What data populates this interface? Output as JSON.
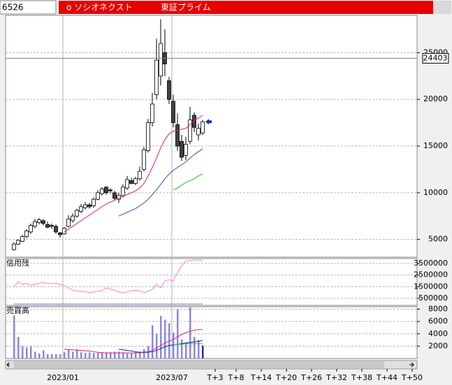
{
  "header": {
    "code": "6526",
    "name": "o ソシオネクスト",
    "market": "東証プライム"
  },
  "chart_data": [
    {
      "type": "candlestick",
      "categories": [
        null,
        null,
        null,
        null,
        null,
        null,
        null,
        null,
        null,
        null,
        null,
        null,
        "2023/01",
        null,
        null,
        null,
        null,
        null,
        null,
        null,
        null,
        null,
        null,
        null,
        null,
        null,
        null,
        null,
        null,
        null,
        null,
        null,
        null,
        null,
        null,
        null,
        null,
        null,
        "2023/07",
        null,
        null,
        null,
        null,
        null,
        null,
        null
      ],
      "forecast_ticks": [
        {
          "value": 3,
          "label": "T+3"
        },
        {
          "value": 8,
          "label": "T+8"
        },
        {
          "value": 14,
          "label": "T+14"
        },
        {
          "value": 20,
          "label": "T+20"
        },
        {
          "value": 26,
          "label": "T+26"
        },
        {
          "value": 32,
          "label": "T+32"
        },
        {
          "value": 38,
          "label": "T+38"
        },
        {
          "value": 44,
          "label": "T+44"
        },
        {
          "value": 50,
          "label": "T+50"
        }
      ],
      "open": [
        3900,
        4500,
        4800,
        5300,
        5800,
        6400,
        6800,
        7000,
        6600,
        6500,
        6400,
        5700,
        5600,
        6400,
        7000,
        7500,
        8000,
        8400,
        8700,
        8600,
        9300,
        9900,
        10600,
        10300,
        10000,
        9300,
        9700,
        10500,
        11300,
        11000,
        11500,
        12500,
        14500,
        17500,
        20500,
        22500,
        25000,
        22000,
        19800,
        17300,
        15500,
        14000,
        15500,
        18300,
        16200,
        16400
      ],
      "high": [
        4700,
        5000,
        5500,
        6100,
        6700,
        7200,
        7300,
        7200,
        6900,
        6700,
        6600,
        5800,
        6300,
        7600,
        7800,
        8300,
        8800,
        9000,
        8900,
        9500,
        10300,
        10600,
        10700,
        10500,
        10200,
        10000,
        10900,
        11800,
        11600,
        11700,
        12800,
        14900,
        17900,
        20700,
        26500,
        28600,
        27500,
        22400,
        20500,
        18500,
        16200,
        16000,
        19200,
        18600,
        17400,
        17800
      ],
      "low": [
        3800,
        4400,
        4700,
        5100,
        5600,
        6200,
        6600,
        6500,
        6200,
        6100,
        5600,
        5200,
        5500,
        6300,
        6800,
        7300,
        7800,
        8200,
        8300,
        8400,
        9200,
        9700,
        9800,
        9900,
        9200,
        8900,
        9500,
        10300,
        10900,
        10800,
        11300,
        12300,
        14300,
        17100,
        20000,
        21500,
        22500,
        19500,
        17000,
        14500,
        13400,
        13500,
        15200,
        16500,
        15600,
        16200
      ],
      "close": [
        4500,
        4900,
        5300,
        5900,
        6500,
        6900,
        7100,
        6700,
        6300,
        6400,
        5800,
        5500,
        6200,
        7200,
        7500,
        8100,
        8500,
        8700,
        8500,
        9300,
        10000,
        10400,
        10000,
        10200,
        9400,
        9700,
        10600,
        11400,
        11000,
        11500,
        12300,
        14600,
        17500,
        19500,
        24200,
        26000,
        23800,
        20000,
        17500,
        15000,
        13800,
        15200,
        17800,
        17000,
        16900,
        17600
      ],
      "moving_averages": [
        {
          "color": "#e0207a",
          "values": [
            null,
            null,
            null,
            null,
            null,
            null,
            null,
            null,
            null,
            null,
            null,
            null,
            5800,
            6100,
            6400,
            6700,
            7000,
            7300,
            7600,
            7900,
            8200,
            8500,
            8800,
            9000,
            9200,
            9400,
            9600,
            9800,
            10000,
            10200,
            10500,
            11000,
            11800,
            12700,
            13700,
            14800,
            15700,
            16300,
            16600,
            16700,
            16800,
            16900,
            17300,
            17700,
            18000,
            18300
          ]
        },
        {
          "color": "#4848c0",
          "values": [
            null,
            null,
            null,
            null,
            null,
            null,
            null,
            null,
            null,
            null,
            null,
            null,
            null,
            null,
            null,
            null,
            null,
            null,
            null,
            null,
            null,
            null,
            null,
            null,
            null,
            7500,
            7700,
            7900,
            8100,
            8300,
            8600,
            8900,
            9300,
            9800,
            10300,
            10900,
            11500,
            12000,
            12400,
            12700,
            13000,
            13300,
            13700,
            14100,
            14400,
            14700
          ]
        },
        {
          "color": "#20c020",
          "values": [
            null,
            null,
            null,
            null,
            null,
            null,
            null,
            null,
            null,
            null,
            null,
            null,
            null,
            null,
            null,
            null,
            null,
            null,
            null,
            null,
            null,
            null,
            null,
            null,
            null,
            null,
            null,
            null,
            null,
            null,
            null,
            null,
            null,
            null,
            null,
            null,
            null,
            null,
            10300,
            10500,
            10800,
            11100,
            11300,
            11500,
            11800,
            12000
          ]
        }
      ],
      "price_line": 24403,
      "ylim": [
        3100,
        29000
      ],
      "yticks": [
        5000,
        10000,
        15000,
        20000,
        25000
      ],
      "grid": true
    },
    {
      "type": "line",
      "title": "信用残",
      "series": [
        {
          "color": "#ff80c8",
          "values": [
            1500000,
            1900000,
            1700000,
            1800000,
            1600000,
            1700000,
            1800000,
            1850000,
            1800000,
            1750000,
            1800000,
            1700000,
            1600000,
            1400000,
            1200000,
            1150000,
            1100000,
            1100000,
            1000000,
            1050000,
            1100000,
            1150000,
            1400000,
            1300000,
            1200000,
            1050000,
            1000000,
            1050000,
            1150000,
            1200000,
            1150000,
            1000000,
            1100000,
            1300000,
            1700000,
            1400000,
            2000000,
            2100000,
            2000000,
            2700000,
            3300000,
            3700000,
            3750000,
            3800000,
            3800000,
            3750000
          ]
        },
        {
          "color": "#8080d0",
          "values": [
            20000,
            20000,
            20000,
            20000,
            20000,
            20000,
            20000,
            20000,
            20000,
            20000,
            20000,
            20000,
            20000,
            20000,
            20000,
            20000,
            20000,
            20000,
            20000,
            20000,
            20000,
            20000,
            20000,
            20000,
            20000,
            20000,
            20000,
            20000,
            20000,
            20000,
            20000,
            20000,
            20000,
            20000,
            20000,
            20000,
            20000,
            20000,
            20000,
            20000,
            20000,
            20000,
            20000,
            20000,
            20000,
            20000
          ]
        }
      ],
      "ylim": [
        -100000,
        3920000
      ],
      "yticks": [
        500000,
        1500000,
        2500000,
        3500000
      ],
      "grid": true
    },
    {
      "type": "bar",
      "title": "売買高",
      "color": "#8888e0",
      "last_color": "#2030c0",
      "values": [
        7000,
        3500,
        2000,
        1800,
        2000,
        1100,
        800,
        1300,
        700,
        700,
        700,
        700,
        1000,
        1500,
        1100,
        1500,
        1000,
        900,
        1000,
        900,
        900,
        1000,
        1000,
        1000,
        1100,
        1100,
        1000,
        900,
        900,
        1100,
        1100,
        1500,
        2000,
        5400,
        4000,
        6900,
        6300,
        5700,
        4200,
        8000,
        3100,
        2600,
        8300,
        3500,
        3000,
        2100
      ],
      "moving_averages": [
        {
          "color": "#e0207a",
          "values": [
            null,
            null,
            null,
            null,
            null,
            null,
            null,
            null,
            null,
            null,
            null,
            null,
            1500,
            1450,
            1400,
            1350,
            1300,
            1250,
            1200,
            1100,
            1000,
            950,
            900,
            900,
            900,
            900,
            900,
            900,
            900,
            900,
            950,
            1000,
            1100,
            1300,
            1700,
            2100,
            2500,
            2800,
            3100,
            3500,
            3900,
            4200,
            4400,
            4600,
            4700,
            4700
          ]
        },
        {
          "color": "#2020a0",
          "values": [
            null,
            null,
            null,
            null,
            null,
            null,
            null,
            null,
            null,
            null,
            null,
            null,
            null,
            null,
            null,
            null,
            null,
            null,
            null,
            null,
            null,
            null,
            null,
            null,
            null,
            1500,
            1400,
            1300,
            1200,
            1100,
            1000,
            1000,
            1000,
            1100,
            1300,
            1600,
            1900,
            2100,
            2200,
            2300,
            2400,
            2500,
            2600,
            2700,
            2800,
            2900
          ]
        },
        {
          "color": "#20c020",
          "values": [
            null,
            null,
            null,
            null,
            null,
            null,
            null,
            null,
            null,
            null,
            null,
            null,
            null,
            null,
            null,
            null,
            null,
            null,
            null,
            null,
            null,
            null,
            null,
            null,
            null,
            null,
            null,
            null,
            null,
            null,
            null,
            null,
            null,
            null,
            null,
            null,
            null,
            null,
            2200,
            2300,
            2300,
            2400,
            2400,
            2400,
            2400,
            2400
          ]
        }
      ],
      "ylim": [
        0,
        8400
      ],
      "yticks": [
        2000,
        4000,
        6000,
        8000
      ],
      "grid": true
    }
  ]
}
